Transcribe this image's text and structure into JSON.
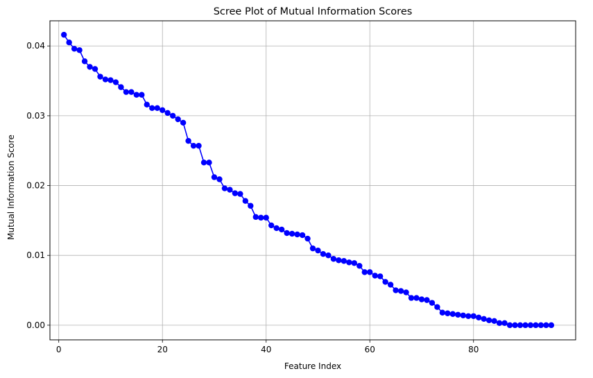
{
  "chart_data": {
    "type": "line",
    "title": "Scree Plot of Mutual Information Scores",
    "xlabel": "Feature Index",
    "ylabel": "Mutual Information Score",
    "xlim": [
      -1.7,
      99.7
    ],
    "ylim": [
      -0.0021,
      0.0436
    ],
    "x_ticks": [
      0,
      20,
      40,
      60,
      80
    ],
    "x_tick_labels": [
      "0",
      "20",
      "40",
      "60",
      "80"
    ],
    "y_ticks": [
      0.0,
      0.01,
      0.02,
      0.03,
      0.04
    ],
    "y_tick_labels": [
      "0.00",
      "0.01",
      "0.02",
      "0.03",
      "0.04"
    ],
    "grid": true,
    "marker": "circle",
    "color": "#0000ff",
    "series": [
      {
        "x": [
          1,
          2,
          3,
          4,
          5,
          6,
          7,
          8,
          9,
          10,
          11,
          12,
          13,
          14,
          15,
          16,
          17,
          18,
          19,
          20,
          21,
          22,
          23,
          24,
          25,
          26,
          27,
          28,
          29,
          30,
          31,
          32,
          33,
          34,
          35,
          36,
          37,
          38,
          39,
          40,
          41,
          42,
          43,
          44,
          45,
          46,
          47,
          48,
          49,
          50,
          51,
          52,
          53,
          54,
          55,
          56,
          57,
          58,
          59,
          60,
          61,
          62,
          63,
          64,
          65,
          66,
          67,
          68,
          69,
          70,
          71,
          72,
          73,
          74,
          75,
          76,
          77,
          78,
          79,
          80,
          81,
          82,
          83,
          84,
          85,
          86,
          87,
          88,
          89,
          90,
          91,
          92,
          93,
          94,
          95
        ],
        "values": [
          0.0416,
          0.0405,
          0.0396,
          0.0394,
          0.0378,
          0.037,
          0.0367,
          0.0356,
          0.0352,
          0.0351,
          0.0348,
          0.0341,
          0.0334,
          0.0334,
          0.033,
          0.033,
          0.0316,
          0.0311,
          0.0311,
          0.0308,
          0.0304,
          0.03,
          0.0295,
          0.029,
          0.0264,
          0.0257,
          0.0257,
          0.0233,
          0.0233,
          0.0212,
          0.0209,
          0.0196,
          0.0194,
          0.0189,
          0.0188,
          0.0178,
          0.0171,
          0.0155,
          0.0154,
          0.0154,
          0.0143,
          0.0139,
          0.0137,
          0.0132,
          0.0131,
          0.013,
          0.0129,
          0.0124,
          0.011,
          0.0107,
          0.0102,
          0.01,
          0.0095,
          0.0093,
          0.0092,
          0.009,
          0.0089,
          0.0085,
          0.0076,
          0.0076,
          0.0071,
          0.007,
          0.0062,
          0.0058,
          0.005,
          0.0049,
          0.0047,
          0.0039,
          0.0039,
          0.0037,
          0.0036,
          0.0032,
          0.0026,
          0.0018,
          0.0017,
          0.0016,
          0.0015,
          0.0014,
          0.0013,
          0.0013,
          0.0011,
          0.0009,
          0.0007,
          0.0006,
          0.0003,
          0.0003,
          0.0,
          0.0,
          0.0,
          0.0,
          0.0,
          0.0,
          0.0,
          0.0,
          0.0
        ]
      }
    ]
  }
}
